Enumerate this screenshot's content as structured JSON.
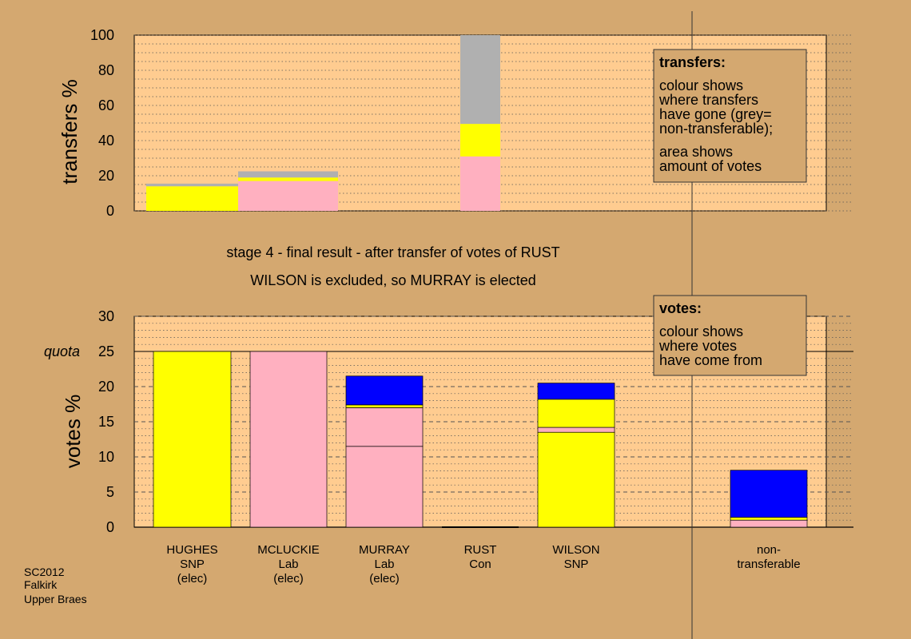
{
  "stage": {
    "line1": "stage 4 - final result - after transfer of votes of RUST",
    "line2": "WILSON is excluded, so MURRAY is elected"
  },
  "source": {
    "line1": "SC2012",
    "line2": "Falkirk",
    "line3": "Upper Braes"
  },
  "colors": {
    "background": "#d4a870",
    "plot_bg": "#ffcc90",
    "snp": "#ffff00",
    "lab": "#ffb0c0",
    "con": "#0000ff",
    "nontransferable": "#b0b0b0"
  },
  "transfers_legend": {
    "title": "transfers:",
    "lines1": [
      "colour shows",
      "where transfers",
      "have gone (grey=",
      "non-transferable);"
    ],
    "lines2": [
      "area shows",
      "amount of votes"
    ]
  },
  "votes_legend": {
    "title": "votes:",
    "lines": [
      "colour shows",
      "where votes",
      "have come from"
    ]
  },
  "chart_data": [
    {
      "type": "bar",
      "stacked": true,
      "ylabel": "transfers %",
      "ylim": [
        0,
        100
      ],
      "yticks": [
        "0",
        "20",
        "40",
        "60",
        "80",
        "100"
      ],
      "grid": "dotted",
      "bars": [
        {
          "key": "hughes",
          "segments": [
            {
              "color": "snp",
              "value": 14
            },
            {
              "color": "nontransferable",
              "value": 1.5
            }
          ]
        },
        {
          "key": "mcluckie",
          "segments": [
            {
              "color": "lab",
              "value": 17
            },
            {
              "color": "snp",
              "value": 2
            },
            {
              "color": "nontransferable",
              "value": 3.5
            }
          ]
        },
        {
          "key": "rust",
          "segments": [
            {
              "color": "lab",
              "value": 31
            },
            {
              "color": "snp",
              "value": 18.5
            },
            {
              "color": "nontransferable",
              "value": 50.5
            }
          ]
        }
      ]
    },
    {
      "type": "bar",
      "stacked": true,
      "ylabel": "votes %",
      "ylim": [
        0,
        30
      ],
      "yticks": [
        "0",
        "5",
        "10",
        "15",
        "20",
        "25",
        "30"
      ],
      "quota": {
        "label": "quota",
        "value": 25
      },
      "grid": "dashed",
      "categories": [
        {
          "key": "hughes",
          "lines": [
            "HUGHES",
            "SNP",
            "(elec)"
          ]
        },
        {
          "key": "mcluckie",
          "lines": [
            "MCLUCKIE",
            "Lab",
            "(elec)"
          ]
        },
        {
          "key": "murray",
          "lines": [
            "MURRAY",
            "Lab",
            "(elec)"
          ]
        },
        {
          "key": "rust",
          "lines": [
            "RUST",
            "Con"
          ]
        },
        {
          "key": "wilson",
          "lines": [
            "WILSON",
            "SNP"
          ]
        },
        {
          "key": "nontransferable",
          "lines": [
            "non-",
            "transferable"
          ]
        }
      ],
      "bars": [
        {
          "key": "hughes",
          "segments": [
            {
              "color": "snp",
              "value": 25
            }
          ]
        },
        {
          "key": "mcluckie",
          "segments": [
            {
              "color": "lab",
              "value": 25
            }
          ]
        },
        {
          "key": "murray",
          "segments": [
            {
              "color": "lab",
              "value": 11.5
            },
            {
              "color": "lab",
              "value": 5.5
            },
            {
              "color": "snp",
              "value": 0.4
            },
            {
              "color": "con",
              "value": 4.1
            }
          ]
        },
        {
          "key": "rust",
          "segments": [
            {
              "color": "con",
              "value": 0
            }
          ]
        },
        {
          "key": "wilson",
          "segments": [
            {
              "color": "snp",
              "value": 13.5
            },
            {
              "color": "lab",
              "value": 0.7
            },
            {
              "color": "snp",
              "value": 4
            },
            {
              "color": "con",
              "value": 2.3
            }
          ]
        },
        {
          "key": "nontransferable",
          "segments": [
            {
              "color": "lab",
              "value": 1
            },
            {
              "color": "snp",
              "value": 0.4
            },
            {
              "color": "con",
              "value": 6.7
            }
          ]
        }
      ]
    }
  ]
}
